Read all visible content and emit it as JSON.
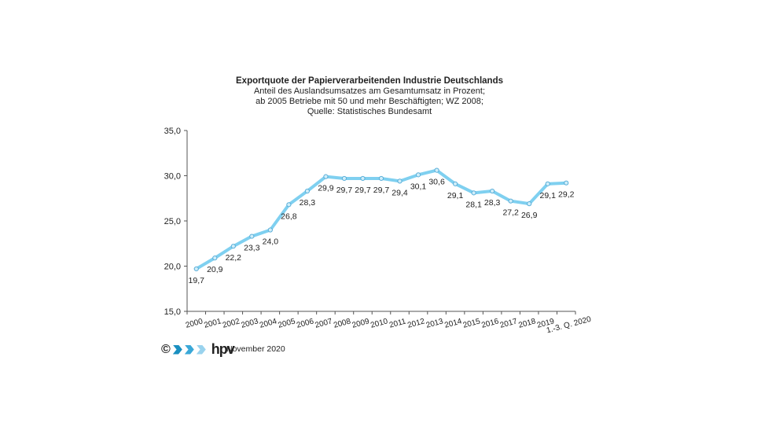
{
  "chart_data": {
    "type": "line",
    "title": "Exportquote der Papierverarbeitenden Industrie Deutschlands",
    "subtitle": [
      "Anteil des Auslandsumsatzes am Gesamtumsatz in Prozent;",
      "ab 2005 Betriebe mit 50 und mehr Beschäftigten; WZ 2008;",
      "Quelle: Statistisches Bundesamt"
    ],
    "categories": [
      "2000",
      "2001",
      "2002",
      "2003",
      "2004",
      "2005",
      "2006",
      "2007",
      "2008",
      "2009",
      "2010",
      "2011",
      "2012",
      "2013",
      "2014",
      "2015",
      "2016",
      "2017",
      "2018",
      "2019",
      "1.-3. Q. 2020"
    ],
    "values": [
      19.7,
      20.9,
      22.2,
      23.3,
      24.0,
      26.8,
      28.3,
      29.9,
      29.7,
      29.7,
      29.7,
      29.4,
      30.1,
      30.6,
      29.1,
      28.1,
      28.3,
      27.2,
      26.9,
      29.1,
      29.2
    ],
    "data_labels": [
      "19,7",
      "20,9",
      "22,2",
      "23,3",
      "24,0",
      "26,8",
      "28,3",
      "29,9",
      "29,7",
      "29,7",
      "29,7",
      "29,4",
      "30,1",
      "30,6",
      "29,1",
      "28,1",
      "28,3",
      "27,2",
      "26,9",
      "29,1",
      "29,2"
    ],
    "yticks": [
      "15,0",
      "20,0",
      "25,0",
      "30,0",
      "35,0"
    ],
    "ylim": [
      15,
      35
    ],
    "grid": false,
    "line_color": "#7fd0f0",
    "marker_color": "#5aaed8"
  },
  "footer": {
    "copyright": "©",
    "logo_text": "hpv",
    "date": "November 2020"
  }
}
